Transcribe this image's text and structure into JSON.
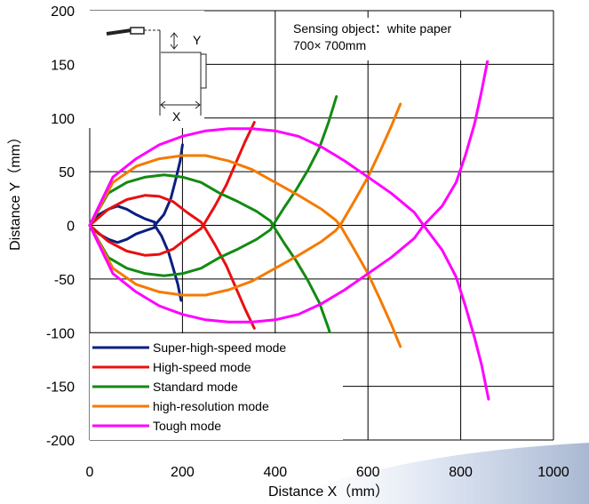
{
  "chart_data": {
    "type": "line",
    "xlabel": "Distance X（mm）",
    "ylabel": "Distance Y（mm）",
    "xlim": [
      0,
      1000
    ],
    "ylim": [
      -200,
      200
    ],
    "x_ticks": [
      "0",
      "200",
      "400",
      "600",
      "800",
      "1000"
    ],
    "y_ticks": [
      "200",
      "150",
      "100",
      "50",
      "0",
      "-50",
      "-100",
      "-150",
      "-200"
    ],
    "grid": true,
    "legend_position": "bottom-left",
    "annotation": {
      "line1": "Sensing object：white paper",
      "line2": "700× 700mm",
      "inset_x_label": "X",
      "inset_y_label": "Y"
    },
    "series": [
      {
        "name": "Super-high-speed mode",
        "color": "#0a1f80",
        "upper": [
          [
            0,
            0
          ],
          [
            20,
            10
          ],
          [
            40,
            15
          ],
          [
            60,
            18
          ],
          [
            80,
            15
          ],
          [
            100,
            10
          ],
          [
            120,
            6
          ],
          [
            140,
            3
          ]
        ],
        "apex": [
          140,
          0
        ],
        "lower": [
          [
            0,
            0
          ],
          [
            20,
            -8
          ],
          [
            40,
            -13
          ],
          [
            60,
            -16
          ],
          [
            80,
            -13
          ],
          [
            100,
            -8
          ],
          [
            120,
            -5
          ],
          [
            140,
            -2
          ]
        ],
        "right_up": [
          [
            140,
            0
          ],
          [
            160,
            10
          ],
          [
            175,
            25
          ],
          [
            185,
            42
          ],
          [
            195,
            60
          ],
          [
            200,
            75
          ]
        ],
        "right_down": [
          [
            140,
            0
          ],
          [
            155,
            -10
          ],
          [
            170,
            -25
          ],
          [
            180,
            -40
          ],
          [
            190,
            -55
          ],
          [
            197,
            -70
          ]
        ]
      },
      {
        "name": "High-speed mode",
        "color": "#e81010",
        "upper": [
          [
            0,
            0
          ],
          [
            40,
            15
          ],
          [
            80,
            24
          ],
          [
            120,
            28
          ],
          [
            150,
            27
          ],
          [
            180,
            22
          ],
          [
            210,
            12
          ],
          [
            240,
            3
          ]
        ],
        "apex": [
          245,
          0
        ],
        "lower": [
          [
            0,
            0
          ],
          [
            40,
            -15
          ],
          [
            80,
            -24
          ],
          [
            120,
            -28
          ],
          [
            150,
            -27
          ],
          [
            180,
            -22
          ],
          [
            210,
            -12
          ],
          [
            240,
            -3
          ]
        ],
        "right_up": [
          [
            245,
            0
          ],
          [
            270,
            18
          ],
          [
            295,
            38
          ],
          [
            315,
            58
          ],
          [
            335,
            78
          ],
          [
            355,
            96
          ]
        ],
        "right_down": [
          [
            245,
            0
          ],
          [
            270,
            -18
          ],
          [
            295,
            -38
          ],
          [
            315,
            -58
          ],
          [
            335,
            -78
          ],
          [
            355,
            -96
          ]
        ]
      },
      {
        "name": "Standard mode",
        "color": "#138a13",
        "upper": [
          [
            0,
            0
          ],
          [
            40,
            30
          ],
          [
            80,
            40
          ],
          [
            120,
            45
          ],
          [
            160,
            47
          ],
          [
            200,
            45
          ],
          [
            240,
            40
          ],
          [
            280,
            30
          ],
          [
            320,
            22
          ],
          [
            360,
            13
          ],
          [
            390,
            4
          ]
        ],
        "apex": [
          395,
          0
        ],
        "lower": [
          [
            0,
            0
          ],
          [
            40,
            -30
          ],
          [
            80,
            -40
          ],
          [
            120,
            -45
          ],
          [
            160,
            -47
          ],
          [
            200,
            -45
          ],
          [
            240,
            -40
          ],
          [
            280,
            -30
          ],
          [
            320,
            -22
          ],
          [
            360,
            -13
          ],
          [
            390,
            -4
          ]
        ],
        "right_up": [
          [
            395,
            0
          ],
          [
            420,
            17
          ],
          [
            445,
            33
          ],
          [
            470,
            51
          ],
          [
            495,
            72
          ],
          [
            515,
            96
          ],
          [
            532,
            120
          ]
        ],
        "right_down": [
          [
            395,
            0
          ],
          [
            420,
            -17
          ],
          [
            445,
            -33
          ],
          [
            470,
            -51
          ],
          [
            495,
            -72
          ],
          [
            515,
            -96
          ],
          [
            532,
            -120
          ]
        ]
      },
      {
        "name": "high-resolution mode",
        "color": "#f57a00",
        "upper": [
          [
            0,
            0
          ],
          [
            50,
            40
          ],
          [
            100,
            55
          ],
          [
            150,
            62
          ],
          [
            200,
            65
          ],
          [
            250,
            65
          ],
          [
            300,
            60
          ],
          [
            350,
            52
          ],
          [
            400,
            40
          ],
          [
            450,
            28
          ],
          [
            500,
            15
          ],
          [
            530,
            5
          ]
        ],
        "apex": [
          540,
          0
        ],
        "lower": [
          [
            0,
            0
          ],
          [
            50,
            -40
          ],
          [
            100,
            -55
          ],
          [
            150,
            -62
          ],
          [
            200,
            -65
          ],
          [
            250,
            -65
          ],
          [
            300,
            -60
          ],
          [
            350,
            -52
          ],
          [
            400,
            -40
          ],
          [
            450,
            -28
          ],
          [
            500,
            -15
          ],
          [
            530,
            -5
          ]
        ],
        "right_up": [
          [
            540,
            0
          ],
          [
            570,
            22
          ],
          [
            600,
            45
          ],
          [
            625,
            68
          ],
          [
            650,
            92
          ],
          [
            670,
            113
          ]
        ],
        "right_down": [
          [
            540,
            0
          ],
          [
            570,
            -22
          ],
          [
            600,
            -45
          ],
          [
            625,
            -68
          ],
          [
            650,
            -92
          ],
          [
            670,
            -113
          ]
        ]
      },
      {
        "name": "Tough mode",
        "color": "#ff00ff",
        "upper": [
          [
            0,
            0
          ],
          [
            50,
            45
          ],
          [
            100,
            62
          ],
          [
            150,
            75
          ],
          [
            200,
            83
          ],
          [
            250,
            88
          ],
          [
            300,
            90
          ],
          [
            350,
            90
          ],
          [
            400,
            88
          ],
          [
            450,
            83
          ],
          [
            500,
            73
          ],
          [
            550,
            60
          ],
          [
            600,
            45
          ],
          [
            650,
            30
          ],
          [
            700,
            12
          ]
        ],
        "apex": [
          720,
          0
        ],
        "lower": [
          [
            0,
            0
          ],
          [
            50,
            -45
          ],
          [
            100,
            -62
          ],
          [
            150,
            -75
          ],
          [
            200,
            -83
          ],
          [
            250,
            -88
          ],
          [
            300,
            -90
          ],
          [
            350,
            -90
          ],
          [
            400,
            -88
          ],
          [
            450,
            -83
          ],
          [
            500,
            -73
          ],
          [
            550,
            -60
          ],
          [
            600,
            -45
          ],
          [
            650,
            -30
          ],
          [
            700,
            -12
          ]
        ],
        "right_up": [
          [
            720,
            0
          ],
          [
            760,
            18
          ],
          [
            790,
            40
          ],
          [
            810,
            65
          ],
          [
            830,
            95
          ],
          [
            845,
            125
          ],
          [
            860,
            158
          ]
        ],
        "right_down": [
          [
            720,
            0
          ],
          [
            760,
            -23
          ],
          [
            790,
            -48
          ],
          [
            810,
            -75
          ],
          [
            830,
            -105
          ],
          [
            845,
            -130
          ],
          [
            860,
            -162
          ]
        ]
      }
    ]
  },
  "colors": {
    "grid": "#000000",
    "background": "#ffffff",
    "swoosh": "#c9d4e6"
  }
}
